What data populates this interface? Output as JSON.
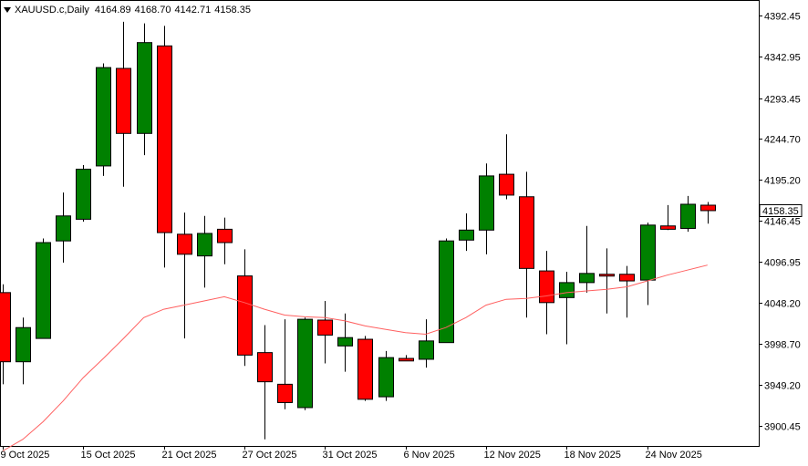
{
  "header": {
    "symbol": "XAUUSD.c,Daily",
    "open": "4164.89",
    "high": "4168.70",
    "low": "4142.71",
    "close": "4158.35"
  },
  "current_price_label": "4158.35",
  "chart_data": {
    "type": "candlestick",
    "colors": {
      "bull": "#008000",
      "bear": "#ff0000",
      "ma": "#ff6060",
      "price_tag": "#ffffff"
    },
    "ylim": [
      3876.0,
      4410.0
    ],
    "y_ticks": [
      "4392.45",
      "4342.95",
      "4293.45",
      "4244.70",
      "4195.20",
      "4146.45",
      "4096.95",
      "4048.20",
      "3998.70",
      "3949.20",
      "3900.45"
    ],
    "x_ticks": [
      {
        "index": 0,
        "label": "9 Oct 2025"
      },
      {
        "index": 4,
        "label": "15 Oct 2025"
      },
      {
        "index": 8,
        "label": "21 Oct 2025"
      },
      {
        "index": 12,
        "label": "27 Oct 2025"
      },
      {
        "index": 16,
        "label": "31 Oct 2025"
      },
      {
        "index": 20,
        "label": "6 Nov 2025"
      },
      {
        "index": 24,
        "label": "12 Nov 2025"
      },
      {
        "index": 28,
        "label": "18 Nov 2025"
      },
      {
        "index": 32,
        "label": "24 Nov 2025"
      }
    ],
    "candles": [
      {
        "o": 4060,
        "h": 4070,
        "l": 3950,
        "c": 3977
      },
      {
        "o": 3977,
        "h": 4030,
        "l": 3950,
        "c": 4018
      },
      {
        "o": 4005,
        "h": 4125,
        "l": 4005,
        "c": 4120
      },
      {
        "o": 4122,
        "h": 4180,
        "l": 4096,
        "c": 4152
      },
      {
        "o": 4148,
        "h": 4213,
        "l": 4145,
        "c": 4208
      },
      {
        "o": 4212,
        "h": 4335,
        "l": 4200,
        "c": 4330
      },
      {
        "o": 4329,
        "h": 4385,
        "l": 4187,
        "c": 4251
      },
      {
        "o": 4251,
        "h": 4383,
        "l": 4225,
        "c": 4360
      },
      {
        "o": 4356,
        "h": 4380,
        "l": 4090,
        "c": 4132
      },
      {
        "o": 4130,
        "h": 4156,
        "l": 4005,
        "c": 4106
      },
      {
        "o": 4104,
        "h": 4152,
        "l": 4066,
        "c": 4131
      },
      {
        "o": 4136,
        "h": 4150,
        "l": 4094,
        "c": 4120
      },
      {
        "o": 4080,
        "h": 4112,
        "l": 3972,
        "c": 3985
      },
      {
        "o": 3988,
        "h": 4021,
        "l": 3884,
        "c": 3953
      },
      {
        "o": 3950,
        "h": 4028,
        "l": 3920,
        "c": 3928
      },
      {
        "o": 3922,
        "h": 4030,
        "l": 3919,
        "c": 4028
      },
      {
        "o": 4027,
        "h": 4050,
        "l": 3975,
        "c": 4009
      },
      {
        "o": 3996,
        "h": 4035,
        "l": 3965,
        "c": 4006
      },
      {
        "o": 4004,
        "h": 4008,
        "l": 3930,
        "c": 3932
      },
      {
        "o": 3935,
        "h": 3990,
        "l": 3930,
        "c": 3982
      },
      {
        "o": 3981,
        "h": 3985,
        "l": 3978,
        "c": 3978
      },
      {
        "o": 3980,
        "h": 4028,
        "l": 3970,
        "c": 4002
      },
      {
        "o": 4000,
        "h": 4125,
        "l": 4000,
        "c": 4122
      },
      {
        "o": 4123,
        "h": 4155,
        "l": 4110,
        "c": 4135
      },
      {
        "o": 4135,
        "h": 4215,
        "l": 4106,
        "c": 4200
      },
      {
        "o": 4202,
        "h": 4250,
        "l": 4172,
        "c": 4177
      },
      {
        "o": 4175,
        "h": 4205,
        "l": 4030,
        "c": 4089
      },
      {
        "o": 4086,
        "h": 4110,
        "l": 4010,
        "c": 4048
      },
      {
        "o": 4054,
        "h": 4085,
        "l": 3998,
        "c": 4072
      },
      {
        "o": 4072,
        "h": 4140,
        "l": 4060,
        "c": 4083
      },
      {
        "o": 4082,
        "h": 4113,
        "l": 4035,
        "c": 4080
      },
      {
        "o": 4082,
        "h": 4092,
        "l": 4030,
        "c": 4074
      },
      {
        "o": 4075,
        "h": 4144,
        "l": 4045,
        "c": 4141
      },
      {
        "o": 4140,
        "h": 4165,
        "l": 4135,
        "c": 4136
      },
      {
        "o": 4137,
        "h": 4176,
        "l": 4133,
        "c": 4166
      },
      {
        "o": 4164.89,
        "h": 4168.7,
        "l": 4142.71,
        "c": 4158.35
      }
    ],
    "ma": [
      3870,
      3884,
      3905,
      3930,
      3958,
      3981,
      4005,
      4030,
      4040,
      4045,
      4050,
      4055,
      4048,
      4040,
      4033,
      4031,
      4030,
      4026,
      4020,
      4016,
      4012,
      4010,
      4018,
      4030,
      4045,
      4052,
      4053,
      4056,
      4060,
      4062,
      4064,
      4067,
      4074,
      4081,
      4087,
      4093
    ]
  }
}
